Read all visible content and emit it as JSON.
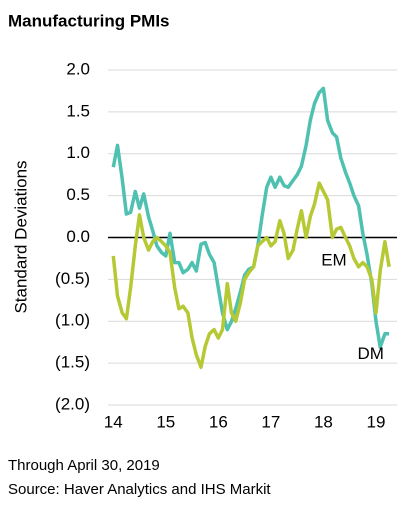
{
  "chart_data": {
    "type": "line",
    "title": "Manufacturing PMIs",
    "y_label": "Standard Deviations",
    "footnote": "Through April 30, 2019",
    "source": "Source: Haver Analytics and IHS Markit",
    "x": [
      14,
      14.08,
      14.17,
      14.25,
      14.33,
      14.42,
      14.5,
      14.58,
      14.67,
      14.75,
      14.83,
      14.92,
      15,
      15.08,
      15.17,
      15.25,
      15.33,
      15.42,
      15.5,
      15.58,
      15.67,
      15.75,
      15.83,
      15.92,
      16,
      16.08,
      16.17,
      16.25,
      16.33,
      16.42,
      16.5,
      16.58,
      16.67,
      16.75,
      16.83,
      16.92,
      17,
      17.08,
      17.17,
      17.25,
      17.33,
      17.42,
      17.5,
      17.58,
      17.67,
      17.75,
      17.83,
      17.92,
      18,
      18.08,
      18.17,
      18.25,
      18.33,
      18.42,
      18.5,
      18.58,
      18.67,
      18.75,
      18.83,
      18.92,
      19,
      19.08,
      19.17,
      19.25
    ],
    "series": [
      {
        "name": "EM",
        "color": "#4fc1b1",
        "values": [
          0.84,
          1.1,
          0.7,
          0.28,
          0.3,
          0.55,
          0.35,
          0.52,
          0.25,
          0.08,
          -0.1,
          -0.18,
          -0.22,
          0.05,
          -0.3,
          -0.3,
          -0.42,
          -0.38,
          -0.3,
          -0.4,
          -0.08,
          -0.06,
          -0.2,
          -0.3,
          -0.6,
          -0.9,
          -1.1,
          -1.0,
          -0.85,
          -0.65,
          -0.45,
          -0.38,
          -0.35,
          -0.1,
          0.25,
          0.6,
          0.72,
          0.6,
          0.72,
          0.62,
          0.6,
          0.68,
          0.75,
          0.85,
          1.1,
          1.4,
          1.6,
          1.73,
          1.78,
          1.4,
          1.25,
          1.2,
          0.95,
          0.78,
          0.65,
          0.5,
          0.38,
          0.05,
          -0.2,
          -0.55,
          -1.0,
          -1.31,
          -1.15,
          -1.15
        ]
      },
      {
        "name": "DM",
        "color": "#b6c935",
        "values": [
          -0.22,
          -0.7,
          -0.9,
          -0.97,
          -0.6,
          -0.1,
          0.27,
          0.0,
          -0.15,
          -0.05,
          0,
          -0.05,
          -0.1,
          -0.18,
          -0.6,
          -0.85,
          -0.82,
          -0.9,
          -1.2,
          -1.4,
          -1.55,
          -1.3,
          -1.15,
          -1.1,
          -1.2,
          -1.1,
          -0.55,
          -0.9,
          -1.0,
          -0.78,
          -0.5,
          -0.42,
          -0.35,
          -0.1,
          -0.05,
          0.0,
          -0.1,
          -0.05,
          0.2,
          0.05,
          -0.25,
          -0.15,
          0.1,
          0.32,
          0.0,
          0.25,
          0.4,
          0.65,
          0.55,
          0.45,
          0.0,
          0.1,
          0.12,
          0.0,
          -0.1,
          -0.25,
          -0.35,
          -0.3,
          -0.35,
          -0.5,
          -0.9,
          -0.4,
          -0.05,
          -0.35
        ]
      }
    ],
    "xlim": [
      13.9,
      19.4
    ],
    "xticks": [
      14,
      15,
      16,
      17,
      18,
      19
    ],
    "ylim": [
      -2,
      2
    ],
    "yticks": [
      {
        "value": 2,
        "label": "2.0"
      },
      1.5,
      {
        "value": 1,
        "label": "1.0"
      },
      0.5,
      {
        "value": 0,
        "label": "0.0"
      },
      {
        "value": -0.5,
        "label": "(0.5)"
      },
      {
        "value": -1,
        "label": "(1.0)"
      },
      {
        "value": -1.5,
        "label": "(1.5)"
      },
      {
        "value": -2,
        "label": "(2.0)"
      }
    ],
    "grid": true,
    "annotations": [
      {
        "text": "EM",
        "x": 18.2,
        "y": -0.28
      },
      {
        "text": "DM",
        "x": 18.9,
        "y": -1.4
      }
    ]
  }
}
